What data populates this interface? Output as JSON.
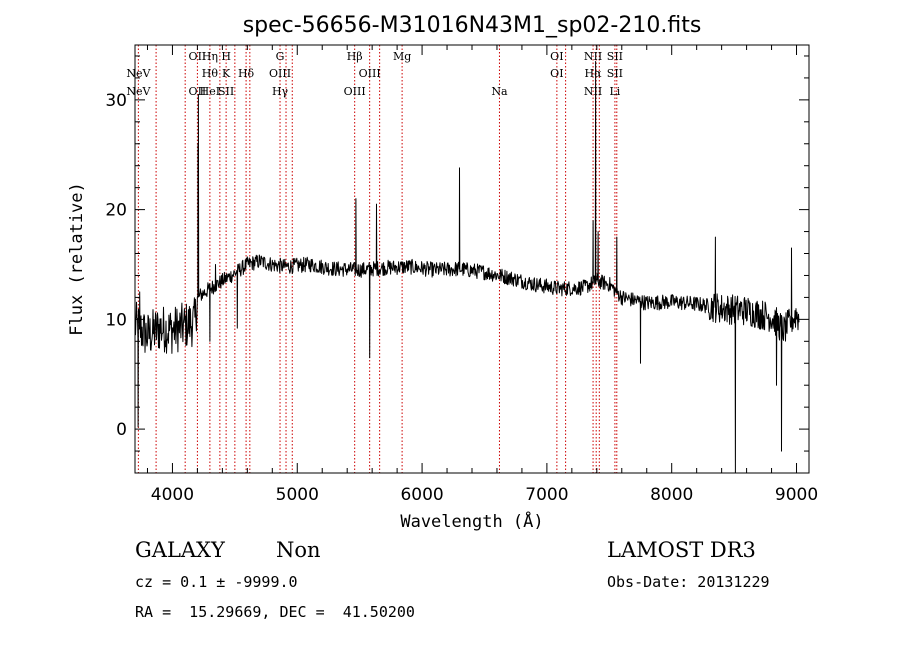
{
  "chart_data": {
    "type": "line",
    "title": "spec-56656-M31016N43M1_sp02-210.fits",
    "xlabel": "Wavelength (Å)",
    "ylabel": "Flux (relative)",
    "xlim": [
      3700,
      9100
    ],
    "ylim": [
      -4,
      35
    ],
    "x_ticks": [
      4000,
      5000,
      6000,
      7000,
      8000,
      9000
    ],
    "y_ticks": [
      0,
      10,
      20,
      30
    ],
    "line_color": "#000000",
    "marker_color": "#cc0000",
    "continuum": [
      [
        3700,
        9.5
      ],
      [
        3800,
        8.5
      ],
      [
        3900,
        9.2
      ],
      [
        4000,
        9.0
      ],
      [
        4100,
        9.4
      ],
      [
        4180,
        9.8
      ],
      [
        4200,
        12.0
      ],
      [
        4300,
        12.8
      ],
      [
        4400,
        13.5
      ],
      [
        4500,
        14.2
      ],
      [
        4600,
        15.0
      ],
      [
        4700,
        15.3
      ],
      [
        4800,
        15.0
      ],
      [
        4900,
        14.8
      ],
      [
        5000,
        14.9
      ],
      [
        5100,
        15.0
      ],
      [
        5300,
        14.6
      ],
      [
        5500,
        14.5
      ],
      [
        5700,
        14.7
      ],
      [
        5900,
        14.8
      ],
      [
        6100,
        14.5
      ],
      [
        6300,
        14.6
      ],
      [
        6500,
        14.3
      ],
      [
        6700,
        13.8
      ],
      [
        6900,
        13.2
      ],
      [
        7100,
        12.8
      ],
      [
        7300,
        12.9
      ],
      [
        7400,
        13.5
      ],
      [
        7500,
        13.2
      ],
      [
        7600,
        12.0
      ],
      [
        7800,
        11.5
      ],
      [
        8000,
        11.6
      ],
      [
        8200,
        11.4
      ],
      [
        8400,
        11.0
      ],
      [
        8600,
        10.8
      ],
      [
        8800,
        10.2
      ],
      [
        8900,
        9.0
      ],
      [
        9000,
        10.5
      ],
      [
        9020,
        10.0
      ]
    ],
    "features": [
      {
        "x": 3725,
        "y": 0.2
      },
      {
        "x": 3738,
        "y": 12.5
      },
      {
        "x": 4205,
        "y": 26.0
      },
      {
        "x": 4208,
        "y": 30.5
      },
      {
        "x": 4300,
        "y": 8.0
      },
      {
        "x": 4345,
        "y": 15.0
      },
      {
        "x": 4520,
        "y": 9.2
      },
      {
        "x": 5470,
        "y": 21.0
      },
      {
        "x": 5580,
        "y": 6.5
      },
      {
        "x": 5635,
        "y": 20.5
      },
      {
        "x": 6300,
        "y": 23.8
      },
      {
        "x": 7370,
        "y": 19.0
      },
      {
        "x": 7390,
        "y": 33.5
      },
      {
        "x": 7410,
        "y": 18.0
      },
      {
        "x": 7560,
        "y": 17.5
      },
      {
        "x": 7750,
        "y": 6.0
      },
      {
        "x": 8350,
        "y": 17.5
      },
      {
        "x": 8510,
        "y": -4.0
      },
      {
        "x": 8840,
        "y": 4.0
      },
      {
        "x": 8880,
        "y": -2.0
      },
      {
        "x": 8960,
        "y": 16.5
      }
    ],
    "line_markers": [
      {
        "x": 3727,
        "row1": "",
        "row2": "NeV",
        "row3": "NeV"
      },
      {
        "x": 3869,
        "row1": "",
        "row2": "",
        "row3": ""
      },
      {
        "x": 4102,
        "row1": "",
        "row2": "",
        "row3": ""
      },
      {
        "x": 4200,
        "row1": "OII",
        "row2": "",
        "row3": "OII"
      },
      {
        "x": 4300,
        "row1": "Hη",
        "row2": "Hθ",
        "row3": "HeI"
      },
      {
        "x": 4380,
        "row1": "",
        "row2": "",
        "row3": ""
      },
      {
        "x": 4430,
        "row1": "H",
        "row2": "K",
        "row3": "SII"
      },
      {
        "x": 4500,
        "row1": "",
        "row2": "",
        "row3": ""
      },
      {
        "x": 4590,
        "row1": "",
        "row2": "Hδ",
        "row3": ""
      },
      {
        "x": 4620,
        "row1": "",
        "row2": "",
        "row3": ""
      },
      {
        "x": 4862,
        "row1": "G",
        "row2": "OIII",
        "row3": "Hγ"
      },
      {
        "x": 4910,
        "row1": "",
        "row2": "",
        "row3": ""
      },
      {
        "x": 4960,
        "row1": "",
        "row2": "",
        "row3": ""
      },
      {
        "x": 5460,
        "row1": "Hβ",
        "row2": "",
        "row3": "OIII"
      },
      {
        "x": 5580,
        "row1": "",
        "row2": "OIII",
        "row3": ""
      },
      {
        "x": 5660,
        "row1": "",
        "row2": "",
        "row3": ""
      },
      {
        "x": 5840,
        "row1": "Mg",
        "row2": "",
        "row3": ""
      },
      {
        "x": 6620,
        "row1": "",
        "row2": "",
        "row3": "Na"
      },
      {
        "x": 7080,
        "row1": "OI",
        "row2": "OI",
        "row3": ""
      },
      {
        "x": 7150,
        "row1": "",
        "row2": "",
        "row3": ""
      },
      {
        "x": 7370,
        "row1": "NII",
        "row2": "Hα",
        "row3": "NII"
      },
      {
        "x": 7395,
        "row1": "",
        "row2": "",
        "row3": ""
      },
      {
        "x": 7420,
        "row1": "",
        "row2": "",
        "row3": ""
      },
      {
        "x": 7545,
        "row1": "SII",
        "row2": "SII",
        "row3": "Li"
      },
      {
        "x": 7560,
        "row1": "",
        "row2": "",
        "row3": ""
      }
    ]
  },
  "info": {
    "class_label": "GALAXY",
    "subclass": "Non",
    "survey": "LAMOST DR3",
    "cz_line": "cz = 0.1 ± -9999.0",
    "obs_date_line": "Obs-Date: 20131229",
    "radec_line": "RA =  15.29669, DEC =  41.50200"
  }
}
